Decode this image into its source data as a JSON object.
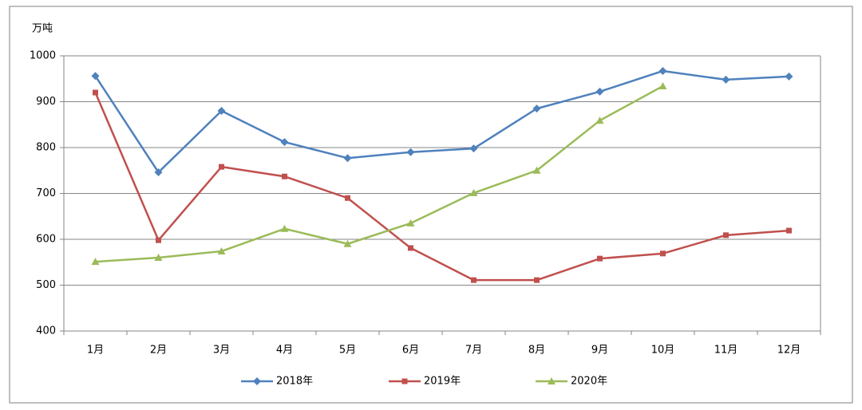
{
  "chart_data": {
    "type": "line",
    "y_label": "万吨",
    "categories": [
      "1月",
      "2月",
      "3月",
      "4月",
      "5月",
      "6月",
      "7月",
      "8月",
      "9月",
      "10月",
      "11月",
      "12月"
    ],
    "series": [
      {
        "name": "2018年",
        "color": "#4f81bd",
        "marker": "diamond",
        "values": [
          956,
          746,
          880,
          812,
          777,
          790,
          798,
          885,
          922,
          967,
          948,
          955
        ]
      },
      {
        "name": "2019年",
        "color": "#c0504d",
        "marker": "square",
        "values": [
          920,
          598,
          758,
          737,
          690,
          581,
          511,
          511,
          558,
          569,
          609,
          619
        ]
      },
      {
        "name": "2020年",
        "color": "#9bbb59",
        "marker": "triangle",
        "values": [
          551,
          560,
          574,
          623,
          590,
          635,
          701,
          750,
          859,
          934,
          null,
          null
        ]
      }
    ],
    "ylim": [
      400,
      1000
    ],
    "yticks": [
      400,
      500,
      600,
      700,
      800,
      900,
      1000
    ],
    "grid": true,
    "legend": "bottom"
  }
}
